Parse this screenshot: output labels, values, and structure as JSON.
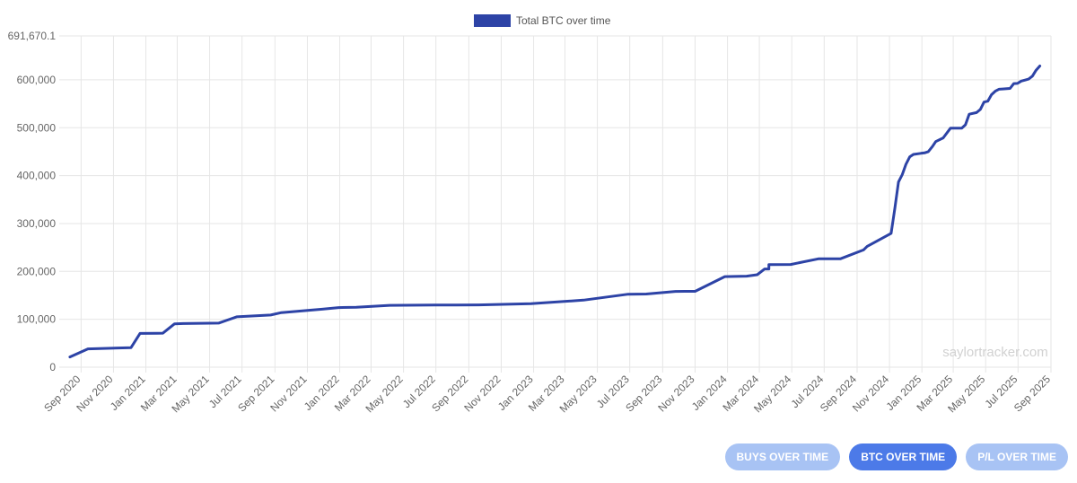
{
  "colors": {
    "line": "#2d43a6",
    "grid": "#e6e6e6",
    "button_active": "#4c7ae8",
    "button_inactive": "#a8c3f4",
    "watermark": "#d1d1d1"
  },
  "watermark": "saylortracker.com",
  "buttons": [
    {
      "label": "BUYS OVER TIME",
      "active": false
    },
    {
      "label": "BTC OVER TIME",
      "active": true
    },
    {
      "label": "P/L OVER TIME",
      "active": false
    }
  ],
  "chart_data": {
    "type": "line",
    "title": "",
    "xlabel": "",
    "ylabel": "",
    "legend": {
      "position": "top-center"
    },
    "grid": true,
    "ylim": [
      0,
      691670.1
    ],
    "y_ticks": [
      {
        "value": 0,
        "label": "0"
      },
      {
        "value": 100000,
        "label": "100,000"
      },
      {
        "value": 200000,
        "label": "200,000"
      },
      {
        "value": 300000,
        "label": "300,000"
      },
      {
        "value": 400000,
        "label": "400,000"
      },
      {
        "value": 500000,
        "label": "500,000"
      },
      {
        "value": 600000,
        "label": "600,000"
      },
      {
        "value": 691670.1,
        "label": "691,670.1"
      }
    ],
    "x_domain": [
      "2020-08-01",
      "2025-09-01"
    ],
    "x_ticks": [
      "Sep 2020",
      "Nov 2020",
      "Jan 2021",
      "Mar 2021",
      "May 2021",
      "Jul 2021",
      "Sep 2021",
      "Nov 2021",
      "Jan 2022",
      "Mar 2022",
      "May 2022",
      "Jul 2022",
      "Sep 2022",
      "Nov 2022",
      "Jan 2023",
      "Mar 2023",
      "May 2023",
      "Jul 2023",
      "Sep 2023",
      "Nov 2023",
      "Jan 2024",
      "Mar 2024",
      "May 2024",
      "Jul 2024",
      "Sep 2024",
      "Nov 2024",
      "Jan 2025",
      "Mar 2025",
      "May 2025",
      "Jul 2025",
      "Sep 2025"
    ],
    "series": [
      {
        "name": "Total BTC over time",
        "color": "#2d43a6",
        "points": [
          {
            "x": "2020-08-11",
            "y": 21454
          },
          {
            "x": "2020-09-14",
            "y": 38250
          },
          {
            "x": "2020-12-04",
            "y": 40824
          },
          {
            "x": "2020-12-21",
            "y": 70470
          },
          {
            "x": "2021-01-22",
            "y": 70784
          },
          {
            "x": "2021-02-02",
            "y": 71079
          },
          {
            "x": "2021-02-24",
            "y": 90531
          },
          {
            "x": "2021-03-12",
            "y": 91064
          },
          {
            "x": "2021-05-18",
            "y": 92079
          },
          {
            "x": "2021-06-21",
            "y": 105085
          },
          {
            "x": "2021-08-24",
            "y": 108992
          },
          {
            "x": "2021-09-13",
            "y": 114042
          },
          {
            "x": "2021-11-29",
            "y": 121044
          },
          {
            "x": "2021-12-30",
            "y": 124391
          },
          {
            "x": "2022-02-01",
            "y": 125051
          },
          {
            "x": "2022-04-05",
            "y": 129218
          },
          {
            "x": "2022-06-29",
            "y": 129699
          },
          {
            "x": "2022-09-20",
            "y": 130000
          },
          {
            "x": "2022-12-27",
            "y": 132500
          },
          {
            "x": "2023-04-05",
            "y": 140000
          },
          {
            "x": "2023-06-28",
            "y": 152333
          },
          {
            "x": "2023-08-01",
            "y": 152800
          },
          {
            "x": "2023-09-25",
            "y": 158245
          },
          {
            "x": "2023-11-01",
            "y": 158400
          },
          {
            "x": "2023-12-27",
            "y": 189150
          },
          {
            "x": "2024-02-06",
            "y": 190000
          },
          {
            "x": "2024-02-26",
            "y": 193000
          },
          {
            "x": "2024-03-11",
            "y": 205000
          },
          {
            "x": "2024-03-19",
            "y": 205000
          },
          {
            "x": "2024-03-19",
            "y": 214246
          },
          {
            "x": "2024-04-29",
            "y": 214400
          },
          {
            "x": "2024-06-20",
            "y": 226331
          },
          {
            "x": "2024-08-01",
            "y": 226500
          },
          {
            "x": "2024-09-13",
            "y": 244800
          },
          {
            "x": "2024-09-20",
            "y": 252220
          },
          {
            "x": "2024-11-04",
            "y": 279420
          },
          {
            "x": "2024-11-11",
            "y": 331200
          },
          {
            "x": "2024-11-18",
            "y": 386700
          },
          {
            "x": "2024-11-25",
            "y": 402100
          },
          {
            "x": "2024-12-02",
            "y": 423650
          },
          {
            "x": "2024-12-09",
            "y": 439000
          },
          {
            "x": "2024-12-16",
            "y": 444262
          },
          {
            "x": "2024-12-30",
            "y": 446400
          },
          {
            "x": "2025-01-06",
            "y": 447470
          },
          {
            "x": "2025-01-13",
            "y": 450000
          },
          {
            "x": "2025-01-21",
            "y": 461000
          },
          {
            "x": "2025-01-27",
            "y": 471107
          },
          {
            "x": "2025-02-10",
            "y": 478740
          },
          {
            "x": "2025-02-24",
            "y": 499096
          },
          {
            "x": "2025-03-17",
            "y": 499226
          },
          {
            "x": "2025-03-24",
            "y": 506137
          },
          {
            "x": "2025-03-31",
            "y": 528185
          },
          {
            "x": "2025-04-14",
            "y": 531644
          },
          {
            "x": "2025-04-21",
            "y": 538200
          },
          {
            "x": "2025-04-28",
            "y": 553555
          },
          {
            "x": "2025-05-05",
            "y": 555450
          },
          {
            "x": "2025-05-12",
            "y": 568840
          },
          {
            "x": "2025-05-19",
            "y": 576230
          },
          {
            "x": "2025-05-26",
            "y": 580250
          },
          {
            "x": "2025-06-02",
            "y": 580955
          },
          {
            "x": "2025-06-16",
            "y": 582000
          },
          {
            "x": "2025-06-23",
            "y": 592100
          },
          {
            "x": "2025-06-30",
            "y": 592500
          },
          {
            "x": "2025-07-07",
            "y": 597325
          },
          {
            "x": "2025-07-21",
            "y": 601550
          },
          {
            "x": "2025-07-28",
            "y": 607770
          },
          {
            "x": "2025-08-04",
            "y": 620000
          },
          {
            "x": "2025-08-11",
            "y": 628791
          }
        ]
      }
    ]
  }
}
